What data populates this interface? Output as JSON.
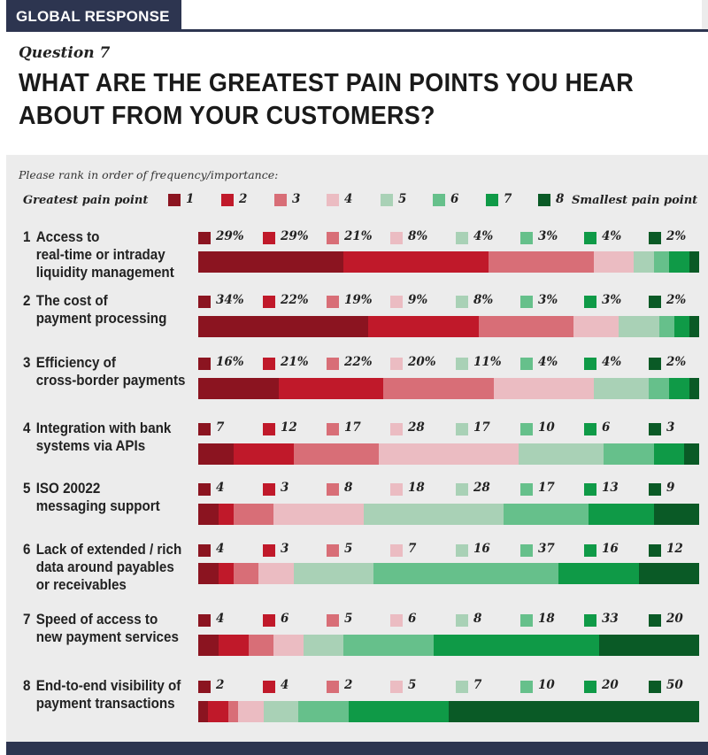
{
  "header": {
    "tag": "GLOBAL RESPONSE"
  },
  "question": {
    "number_label": "Question 7",
    "title_line1": "WHAT ARE THE GREATEST PAIN POINTS YOU HEAR",
    "title_line2": "ABOUT FROM YOUR CUSTOMERS?"
  },
  "instruction": "Please rank in order of frequency/importance:",
  "legend": {
    "left_label": "Greatest pain point",
    "right_label": "Smallest pain point",
    "ranks": [
      "1",
      "2",
      "3",
      "4",
      "5",
      "6",
      "7",
      "8"
    ]
  },
  "colors": [
    "#8b1420",
    "#c0192a",
    "#d86e77",
    "#ebbcc2",
    "#a9d1b6",
    "#66c08b",
    "#0f9a47",
    "#0a5a26"
  ],
  "chart_data": {
    "type": "bar",
    "orientation": "horizontal",
    "stacked": true,
    "categories": [
      {
        "num": "1",
        "lines": [
          "Access to",
          "real-time or intraday",
          "liquidity management"
        ]
      },
      {
        "num": "2",
        "lines": [
          "The cost of",
          "payment processing"
        ]
      },
      {
        "num": "3",
        "lines": [
          "Efficiency of",
          "cross-border payments"
        ]
      },
      {
        "num": "4",
        "lines": [
          "Integration with bank",
          "systems via APIs"
        ]
      },
      {
        "num": "5",
        "lines": [
          "ISO 20022",
          "messaging support"
        ]
      },
      {
        "num": "6",
        "lines": [
          "Lack of extended / rich",
          "data around payables",
          "or receivables"
        ]
      },
      {
        "num": "7",
        "lines": [
          "Speed of access to",
          "new payment services"
        ]
      },
      {
        "num": "8",
        "lines": [
          "End-to-end visibility of",
          "payment transactions"
        ]
      }
    ],
    "series_names": [
      "1",
      "2",
      "3",
      "4",
      "5",
      "6",
      "7",
      "8"
    ],
    "values": [
      [
        29,
        29,
        21,
        8,
        4,
        3,
        4,
        2
      ],
      [
        34,
        22,
        19,
        9,
        8,
        3,
        3,
        2
      ],
      [
        16,
        21,
        22,
        20,
        11,
        4,
        4,
        2
      ],
      [
        7,
        12,
        17,
        28,
        17,
        10,
        6,
        3
      ],
      [
        4,
        3,
        8,
        18,
        28,
        17,
        13,
        9
      ],
      [
        4,
        3,
        5,
        7,
        16,
        37,
        16,
        12
      ],
      [
        4,
        6,
        5,
        6,
        8,
        18,
        33,
        20
      ],
      [
        2,
        4,
        2,
        5,
        7,
        10,
        20,
        50
      ]
    ],
    "display_labels": [
      [
        "29%",
        "29%",
        "21%",
        "8%",
        "4%",
        "3%",
        "4%",
        "2%"
      ],
      [
        "34%",
        "22%",
        "19%",
        "9%",
        "8%",
        "3%",
        "3%",
        "2%"
      ],
      [
        "16%",
        "21%",
        "22%",
        "20%",
        "11%",
        "4%",
        "4%",
        "2%"
      ],
      [
        "7",
        "12",
        "17",
        "28",
        "17",
        "10",
        "6",
        "3"
      ],
      [
        "4",
        "3",
        "8",
        "18",
        "28",
        "17",
        "13",
        "9"
      ],
      [
        "4",
        "3",
        "5",
        "7",
        "16",
        "37",
        "16",
        "12"
      ],
      [
        "4",
        "6",
        "5",
        "6",
        "8",
        "18",
        "33",
        "20"
      ],
      [
        "2",
        "4",
        "2",
        "5",
        "7",
        "10",
        "20",
        "50"
      ]
    ]
  }
}
